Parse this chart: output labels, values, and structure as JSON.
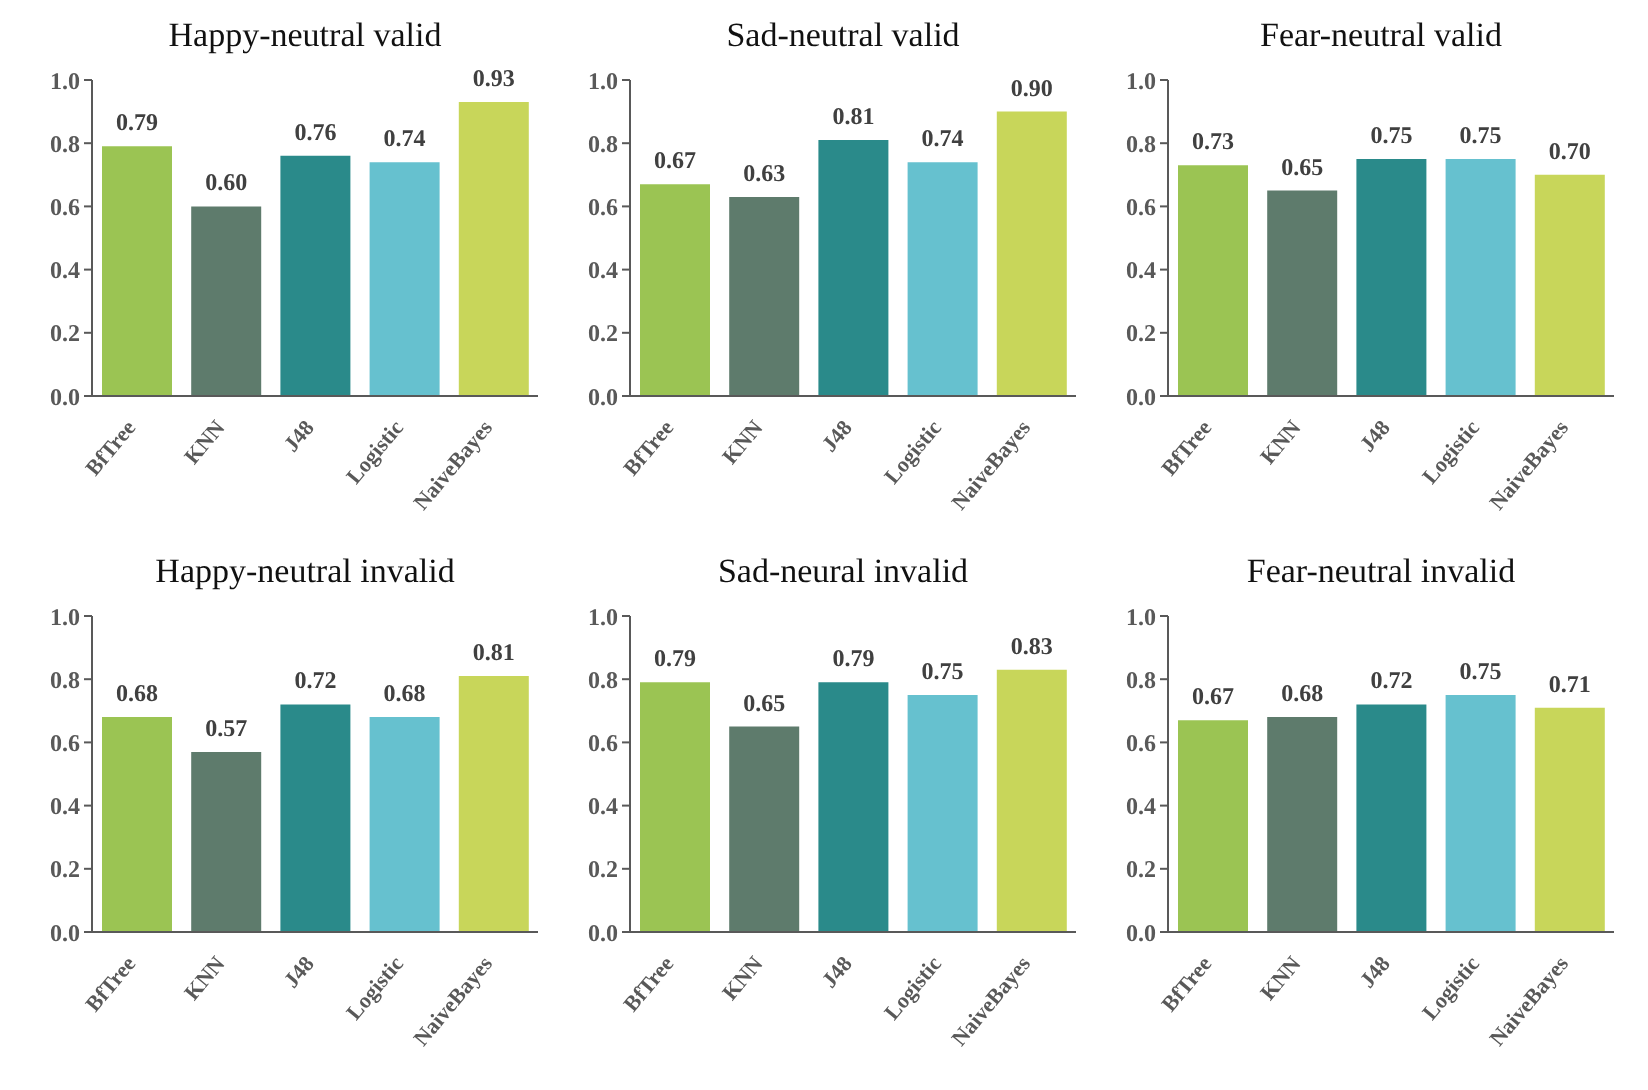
{
  "chart_data": [
    {
      "type": "bar",
      "title": "Happy-neutral valid",
      "categories": [
        "BfTree",
        "KNN",
        "J48",
        "Logistic",
        "NaiveBayes"
      ],
      "values": [
        0.79,
        0.6,
        0.76,
        0.74,
        0.93
      ],
      "value_labels": [
        "0.79",
        "0.60",
        "0.76",
        "0.74",
        "0.93"
      ],
      "colors": [
        "#9bc453",
        "#5e7b6c",
        "#2a8a8a",
        "#66c1cf",
        "#c8d65a"
      ],
      "ylim": [
        0,
        1
      ],
      "yticks": [
        {
          "value": 0,
          "label": "0.0"
        },
        {
          "value": 0.2,
          "label": "0.2"
        },
        {
          "value": 0.4,
          "label": "0.4"
        },
        {
          "value": 0.6,
          "label": "0.6"
        },
        {
          "value": 0.8,
          "label": "0.8"
        },
        {
          "value": 1,
          "label": "1.0"
        }
      ],
      "grid": false
    },
    {
      "type": "bar",
      "title": "Sad-neutral valid",
      "categories": [
        "BfTree",
        "KNN",
        "J48",
        "Logistic",
        "NaiveBayes"
      ],
      "values": [
        0.67,
        0.63,
        0.81,
        0.74,
        0.9
      ],
      "value_labels": [
        "0.67",
        "0.63",
        "0.81",
        "0.74",
        "0.90"
      ],
      "colors": [
        "#9bc453",
        "#5e7b6c",
        "#2a8a8a",
        "#66c1cf",
        "#c8d65a"
      ],
      "ylim": [
        0,
        1
      ],
      "yticks": [
        {
          "value": 0,
          "label": "0.0"
        },
        {
          "value": 0.2,
          "label": "0.2"
        },
        {
          "value": 0.4,
          "label": "0.4"
        },
        {
          "value": 0.6,
          "label": "0.6"
        },
        {
          "value": 0.8,
          "label": "0.8"
        },
        {
          "value": 1,
          "label": "1.0"
        }
      ],
      "grid": false
    },
    {
      "type": "bar",
      "title": "Fear-neutral valid",
      "categories": [
        "BfTree",
        "KNN",
        "J48",
        "Logistic",
        "NaiveBayes"
      ],
      "values": [
        0.73,
        0.65,
        0.75,
        0.75,
        0.7
      ],
      "value_labels": [
        "0.73",
        "0.65",
        "0.75",
        "0.75",
        "0.70"
      ],
      "colors": [
        "#9bc453",
        "#5e7b6c",
        "#2a8a8a",
        "#66c1cf",
        "#c8d65a"
      ],
      "ylim": [
        0,
        1
      ],
      "yticks": [
        {
          "value": 0,
          "label": "0.0"
        },
        {
          "value": 0.2,
          "label": "0.2"
        },
        {
          "value": 0.4,
          "label": "0.4"
        },
        {
          "value": 0.6,
          "label": "0.6"
        },
        {
          "value": 0.8,
          "label": "0.8"
        },
        {
          "value": 1,
          "label": "1.0"
        }
      ],
      "grid": false
    },
    {
      "type": "bar",
      "title": "Happy-neutral invalid",
      "categories": [
        "BfTree",
        "KNN",
        "J48",
        "Logistic",
        "NaiveBayes"
      ],
      "values": [
        0.68,
        0.57,
        0.72,
        0.68,
        0.81
      ],
      "value_labels": [
        "0.68",
        "0.57",
        "0.72",
        "0.68",
        "0.81"
      ],
      "colors": [
        "#9bc453",
        "#5e7b6c",
        "#2a8a8a",
        "#66c1cf",
        "#c8d65a"
      ],
      "ylim": [
        0,
        1
      ],
      "yticks": [
        {
          "value": 0,
          "label": "0.0"
        },
        {
          "value": 0.2,
          "label": "0.2"
        },
        {
          "value": 0.4,
          "label": "0.4"
        },
        {
          "value": 0.6,
          "label": "0.6"
        },
        {
          "value": 0.8,
          "label": "0.8"
        },
        {
          "value": 1,
          "label": "1.0"
        }
      ],
      "grid": false
    },
    {
      "type": "bar",
      "title": "Sad-neural invalid",
      "categories": [
        "BfTree",
        "KNN",
        "J48",
        "Logistic",
        "NaiveBayes"
      ],
      "values": [
        0.79,
        0.65,
        0.79,
        0.75,
        0.83
      ],
      "value_labels": [
        "0.79",
        "0.65",
        "0.79",
        "0.75",
        "0.83"
      ],
      "colors": [
        "#9bc453",
        "#5e7b6c",
        "#2a8a8a",
        "#66c1cf",
        "#c8d65a"
      ],
      "ylim": [
        0,
        1
      ],
      "yticks": [
        {
          "value": 0,
          "label": "0.0"
        },
        {
          "value": 0.2,
          "label": "0.2"
        },
        {
          "value": 0.4,
          "label": "0.4"
        },
        {
          "value": 0.6,
          "label": "0.6"
        },
        {
          "value": 0.8,
          "label": "0.8"
        },
        {
          "value": 1,
          "label": "1.0"
        }
      ],
      "grid": false
    },
    {
      "type": "bar",
      "title": "Fear-neutral invalid",
      "categories": [
        "BfTree",
        "KNN",
        "J48",
        "Logistic",
        "NaiveBayes"
      ],
      "values": [
        0.67,
        0.68,
        0.72,
        0.75,
        0.71
      ],
      "value_labels": [
        "0.67",
        "0.68",
        "0.72",
        "0.75",
        "0.71"
      ],
      "colors": [
        "#9bc453",
        "#5e7b6c",
        "#2a8a8a",
        "#66c1cf",
        "#c8d65a"
      ],
      "ylim": [
        0,
        1
      ],
      "yticks": [
        {
          "value": 0,
          "label": "0.0"
        },
        {
          "value": 0.2,
          "label": "0.2"
        },
        {
          "value": 0.4,
          "label": "0.4"
        },
        {
          "value": 0.6,
          "label": "0.6"
        },
        {
          "value": 0.8,
          "label": "0.8"
        },
        {
          "value": 1,
          "label": "1.0"
        }
      ],
      "grid": false
    }
  ]
}
